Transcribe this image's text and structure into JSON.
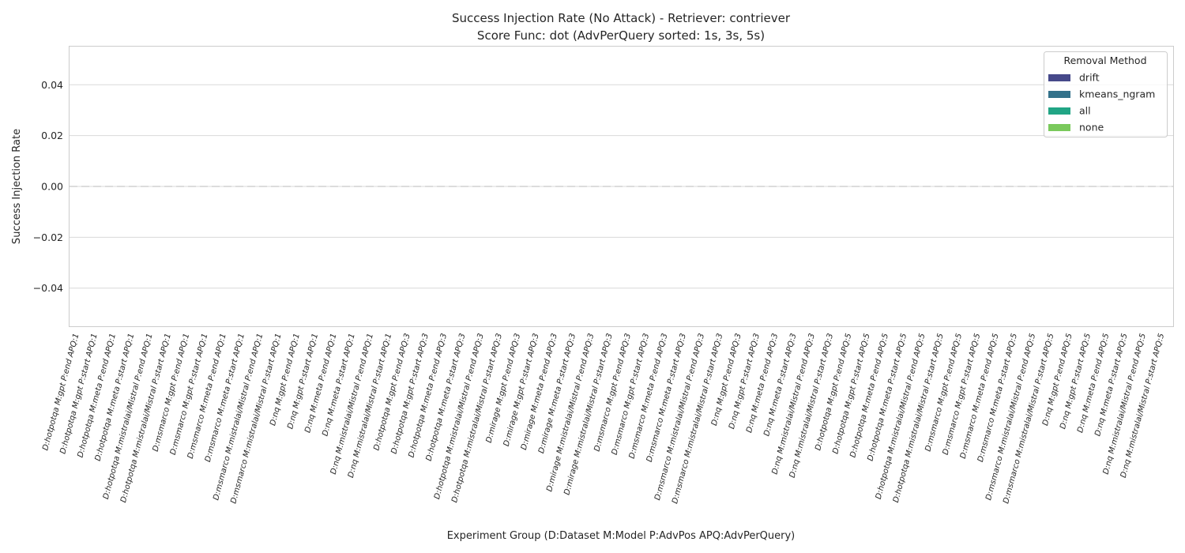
{
  "chart_data": {
    "type": "bar",
    "title_line1": "Success Injection Rate (No Attack) - Retriever: contriever",
    "title_line2": "Score Func: dot (AdvPerQuery sorted: 1s, 3s, 5s)",
    "xlabel": "Experiment Group (D:Dataset M:Model P:AdvPos APQ:AdvPerQuery)",
    "ylabel": "Success Injection Rate",
    "ylim": [
      -0.055,
      0.055
    ],
    "yticks": [
      -0.04,
      -0.02,
      0.0,
      0.02,
      0.04
    ],
    "ytick_labels": [
      "−0.04",
      "−0.02",
      "0.00",
      "0.02",
      "0.04"
    ],
    "grid": true,
    "legend_title": "Removal Method",
    "legend_placement": "top-right",
    "categories": [
      "D:hotpotqa M:gpt P:end APQ:1",
      "D:hotpotqa M:gpt P:start APQ:1",
      "D:hotpotqa M:meta P:end APQ:1",
      "D:hotpotqa M:meta P:start APQ:1",
      "D:hotpotqa M:mistralai/Mistral P:end APQ:1",
      "D:hotpotqa M:mistralai/Mistral P:start APQ:1",
      "D:msmarco M:gpt P:end APQ:1",
      "D:msmarco M:gpt P:start APQ:1",
      "D:msmarco M:meta P:end APQ:1",
      "D:msmarco M:meta P:start APQ:1",
      "D:msmarco M:mistralai/Mistral P:end APQ:1",
      "D:msmarco M:mistralai/Mistral P:start APQ:1",
      "D:nq M:gpt P:end APQ:1",
      "D:nq M:gpt P:start APQ:1",
      "D:nq M:meta P:end APQ:1",
      "D:nq M:meta P:start APQ:1",
      "D:nq M:mistralai/Mistral P:end APQ:1",
      "D:nq M:mistralai/Mistral P:start APQ:1",
      "D:hotpotqa M:gpt P:end APQ:3",
      "D:hotpotqa M:gpt P:start APQ:3",
      "D:hotpotqa M:meta P:end APQ:3",
      "D:hotpotqa M:meta P:start APQ:3",
      "D:hotpotqa M:mistralai/Mistral P:end APQ:3",
      "D:hotpotqa M:mistralai/Mistral P:start APQ:3",
      "D:mirage M:gpt P:end APQ:3",
      "D:mirage M:gpt P:start APQ:3",
      "D:mirage M:meta P:end APQ:3",
      "D:mirage M:meta P:start APQ:3",
      "D:mirage M:mistralai/Mistral P:end APQ:3",
      "D:mirage M:mistralai/Mistral P:start APQ:3",
      "D:msmarco M:gpt P:end APQ:3",
      "D:msmarco M:gpt P:start APQ:3",
      "D:msmarco M:meta P:end APQ:3",
      "D:msmarco M:meta P:start APQ:3",
      "D:msmarco M:mistralai/Mistral P:end APQ:3",
      "D:msmarco M:mistralai/Mistral P:start APQ:3",
      "D:nq M:gpt P:end APQ:3",
      "D:nq M:gpt P:start APQ:3",
      "D:nq M:meta P:end APQ:3",
      "D:nq M:meta P:start APQ:3",
      "D:nq M:mistralai/Mistral P:end APQ:3",
      "D:nq M:mistralai/Mistral P:start APQ:3",
      "D:hotpotqa M:gpt P:end APQ:5",
      "D:hotpotqa M:gpt P:start APQ:5",
      "D:hotpotqa M:meta P:end APQ:5",
      "D:hotpotqa M:meta P:start APQ:5",
      "D:hotpotqa M:mistralai/Mistral P:end APQ:5",
      "D:hotpotqa M:mistralai/Mistral P:start APQ:5",
      "D:msmarco M:gpt P:end APQ:5",
      "D:msmarco M:gpt P:start APQ:5",
      "D:msmarco M:meta P:end APQ:5",
      "D:msmarco M:meta P:start APQ:5",
      "D:msmarco M:mistralai/Mistral P:end APQ:5",
      "D:msmarco M:mistralai/Mistral P:start APQ:5",
      "D:nq M:gpt P:end APQ:5",
      "D:nq M:gpt P:start APQ:5",
      "D:nq M:meta P:end APQ:5",
      "D:nq M:meta P:start APQ:5",
      "D:nq M:mistralai/Mistral P:end APQ:5",
      "D:nq M:mistralai/Mistral P:start APQ:5"
    ],
    "series": [
      {
        "name": "drift",
        "color": "#46498a",
        "values": [
          0,
          0,
          0,
          0,
          0,
          0,
          0,
          0,
          0,
          0,
          0,
          0,
          0,
          0,
          0,
          0,
          0,
          0,
          0,
          0,
          0,
          0,
          0,
          0,
          0,
          0,
          0,
          0,
          0,
          0,
          0,
          0,
          0,
          0,
          0,
          0,
          0,
          0,
          0,
          0,
          0,
          0,
          0,
          0,
          0,
          0,
          0,
          0,
          0,
          0,
          0,
          0,
          0,
          0,
          0,
          0,
          0,
          0,
          0,
          0
        ]
      },
      {
        "name": "kmeans_ngram",
        "color": "#33718a",
        "values": [
          0,
          0,
          0,
          0,
          0,
          0,
          0,
          0,
          0,
          0,
          0,
          0,
          0,
          0,
          0,
          0,
          0,
          0,
          0,
          0,
          0,
          0,
          0,
          0,
          0,
          0,
          0,
          0,
          0,
          0,
          0,
          0,
          0,
          0,
          0,
          0,
          0,
          0,
          0,
          0,
          0,
          0,
          0,
          0,
          0,
          0,
          0,
          0,
          0,
          0,
          0,
          0,
          0,
          0,
          0,
          0,
          0,
          0,
          0,
          0
        ]
      },
      {
        "name": "all",
        "color": "#21a585",
        "values": [
          0,
          0,
          0,
          0,
          0,
          0,
          0,
          0,
          0,
          0,
          0,
          0,
          0,
          0,
          0,
          0,
          0,
          0,
          0,
          0,
          0,
          0,
          0,
          0,
          0,
          0,
          0,
          0,
          0,
          0,
          0,
          0,
          0,
          0,
          0,
          0,
          0,
          0,
          0,
          0,
          0,
          0,
          0,
          0,
          0,
          0,
          0,
          0,
          0,
          0,
          0,
          0,
          0,
          0,
          0,
          0,
          0,
          0,
          0,
          0
        ]
      },
      {
        "name": "none",
        "color": "#7ac95c",
        "values": [
          0,
          0,
          0,
          0,
          0,
          0,
          0,
          0,
          0,
          0,
          0,
          0,
          0,
          0,
          0,
          0,
          0,
          0,
          0,
          0,
          0,
          0,
          0,
          0,
          0,
          0,
          0,
          0,
          0,
          0,
          0,
          0,
          0,
          0,
          0,
          0,
          0,
          0,
          0,
          0,
          0,
          0,
          0,
          0,
          0,
          0,
          0,
          0,
          0,
          0,
          0,
          0,
          0,
          0,
          0,
          0,
          0,
          0,
          0,
          0
        ]
      }
    ],
    "reference_line": {
      "y": 0.0,
      "style": "dashed",
      "color": "#c8c8c8"
    }
  }
}
